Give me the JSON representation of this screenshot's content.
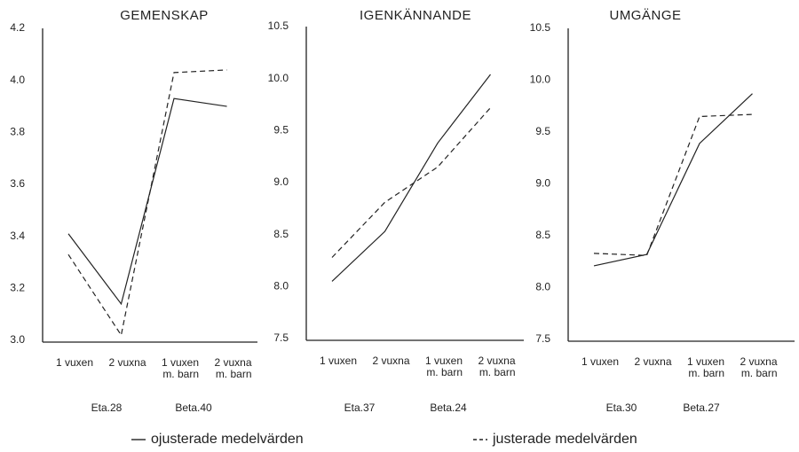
{
  "chart_data": [
    {
      "type": "line",
      "title": "GEMENSKAP",
      "categories": [
        "1 vuxen",
        "2 vuxna",
        "1 vuxen\nm. barn",
        "2 vuxna\nm. barn"
      ],
      "series": [
        {
          "name": "ojusterade medelvärden",
          "color": "#222222",
          "dashed": false,
          "values": [
            3.41,
            3.14,
            3.93,
            3.9
          ]
        },
        {
          "name": "justerade medelvärden",
          "color": "#222222",
          "dashed": true,
          "values": [
            3.33,
            3.02,
            4.03,
            4.04
          ]
        }
      ],
      "ylim": [
        3.0,
        4.2
      ],
      "yticks": [
        {
          "value": 3,
          "label": "3.0"
        },
        3.2,
        3.4,
        3.6,
        3.8,
        {
          "value": 4,
          "label": "4.0"
        },
        4.2
      ],
      "annotations": [
        "Eta.28",
        "Beta.40"
      ]
    },
    {
      "type": "line",
      "title": "IGENKÄNNANDE",
      "categories": [
        "1 vuxen",
        "2 vuxna",
        "1 vuxen\nm. barn",
        "2 vuxna\nm. barn"
      ],
      "series": [
        {
          "color": "#222222",
          "dashed": false,
          "values": [
            8.05,
            8.53,
            9.38,
            10.04
          ]
        },
        {
          "color": "#222222",
          "dashed": true,
          "values": [
            8.28,
            8.81,
            9.15,
            9.72
          ]
        }
      ],
      "ylim": [
        7.5,
        10.5
      ],
      "yticks": [
        7.5,
        {
          "value": 8,
          "label": "8.0"
        },
        8.5,
        {
          "value": 9,
          "label": "9.0"
        },
        9.5,
        {
          "value": 10,
          "label": "10.0"
        },
        10.5
      ],
      "annotations": [
        "Eta.37",
        "Beta.24"
      ]
    },
    {
      "type": "line",
      "title": "UMGÄNGE",
      "categories": [
        "1 vuxen",
        "2 vuxna",
        "1 vuxen\nm. barn",
        "2 vuxna\nm. barn"
      ],
      "series": [
        {
          "color": "#222222",
          "dashed": false,
          "values": [
            8.21,
            8.32,
            9.39,
            9.87
          ]
        },
        {
          "color": "#222222",
          "dashed": true,
          "values": [
            8.33,
            8.31,
            9.65,
            9.67
          ]
        }
      ],
      "ylim": [
        7.5,
        10.5
      ],
      "yticks": [
        7.5,
        {
          "value": 8,
          "label": "8.0"
        },
        8.5,
        {
          "value": 9,
          "label": "9.0"
        },
        9.5,
        {
          "value": 10,
          "label": "10.0"
        },
        10.5
      ],
      "annotations": [
        "Eta.30",
        "Beta.27"
      ]
    }
  ]
}
